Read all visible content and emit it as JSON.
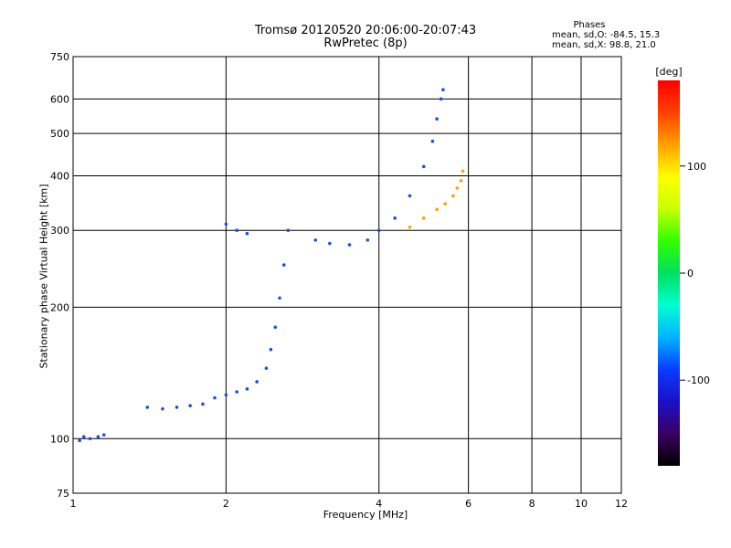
{
  "title_line1": "Tromsø 20120520 20:06:00-20:07:43",
  "title_line2": "RwPretec (8p)",
  "phases": {
    "heading": "Phases",
    "o_line": "mean, sd,O: -84.5, 15.3",
    "x_line": "mean, sd,X:  98.8, 21.0"
  },
  "chart_data": {
    "type": "scatter",
    "xlabel": "Frequency [MHz]",
    "ylabel": "Stationary phase Virtual Height [km]",
    "x_scale": "log",
    "y_scale": "log",
    "xlim": [
      1,
      12
    ],
    "ylim": [
      75,
      750
    ],
    "x_ticks": [
      1,
      2,
      4,
      6,
      8,
      10,
      12
    ],
    "y_ticks": [
      75,
      100,
      200,
      300,
      400,
      500,
      600,
      750
    ],
    "grid": true,
    "colorbar": {
      "label": "[deg]",
      "range": [
        -180,
        180
      ],
      "ticks": [
        -100,
        0,
        100
      ],
      "colors": [
        "#000000",
        "#3a0060",
        "#1a10c8",
        "#0a3cff",
        "#00b4ff",
        "#00ffd0",
        "#00e060",
        "#30ff00",
        "#c8ff00",
        "#ffff00",
        "#ffa000",
        "#ff4000",
        "#ff0000"
      ]
    },
    "o_trace": [
      {
        "x": 1.03,
        "y": 99
      },
      {
        "x": 1.05,
        "y": 101
      },
      {
        "x": 1.08,
        "y": 100
      },
      {
        "x": 1.12,
        "y": 101
      },
      {
        "x": 1.15,
        "y": 102
      },
      {
        "x": 1.4,
        "y": 118
      },
      {
        "x": 1.5,
        "y": 117
      },
      {
        "x": 1.6,
        "y": 118
      },
      {
        "x": 1.7,
        "y": 119
      },
      {
        "x": 1.8,
        "y": 120
      },
      {
        "x": 1.9,
        "y": 124
      },
      {
        "x": 2.0,
        "y": 126
      },
      {
        "x": 2.1,
        "y": 128
      },
      {
        "x": 2.2,
        "y": 130
      },
      {
        "x": 2.3,
        "y": 135
      },
      {
        "x": 2.4,
        "y": 145
      },
      {
        "x": 2.45,
        "y": 160
      },
      {
        "x": 2.5,
        "y": 180
      },
      {
        "x": 2.55,
        "y": 210
      },
      {
        "x": 2.6,
        "y": 250
      },
      {
        "x": 2.65,
        "y": 300
      },
      {
        "x": 2.0,
        "y": 310
      },
      {
        "x": 2.1,
        "y": 300
      },
      {
        "x": 2.2,
        "y": 295
      },
      {
        "x": 3.0,
        "y": 285
      },
      {
        "x": 3.2,
        "y": 280
      },
      {
        "x": 3.5,
        "y": 278
      },
      {
        "x": 3.8,
        "y": 285
      },
      {
        "x": 4.0,
        "y": 300
      },
      {
        "x": 4.3,
        "y": 320
      },
      {
        "x": 4.6,
        "y": 360
      },
      {
        "x": 4.9,
        "y": 420
      },
      {
        "x": 5.1,
        "y": 480
      },
      {
        "x": 5.2,
        "y": 540
      },
      {
        "x": 5.3,
        "y": 600
      },
      {
        "x": 5.35,
        "y": 630
      }
    ],
    "x_trace": [
      {
        "x": 4.6,
        "y": 305
      },
      {
        "x": 4.9,
        "y": 320
      },
      {
        "x": 5.2,
        "y": 335
      },
      {
        "x": 5.4,
        "y": 345
      },
      {
        "x": 5.6,
        "y": 360
      },
      {
        "x": 5.7,
        "y": 375
      },
      {
        "x": 5.8,
        "y": 390
      },
      {
        "x": 5.85,
        "y": 410
      }
    ]
  }
}
